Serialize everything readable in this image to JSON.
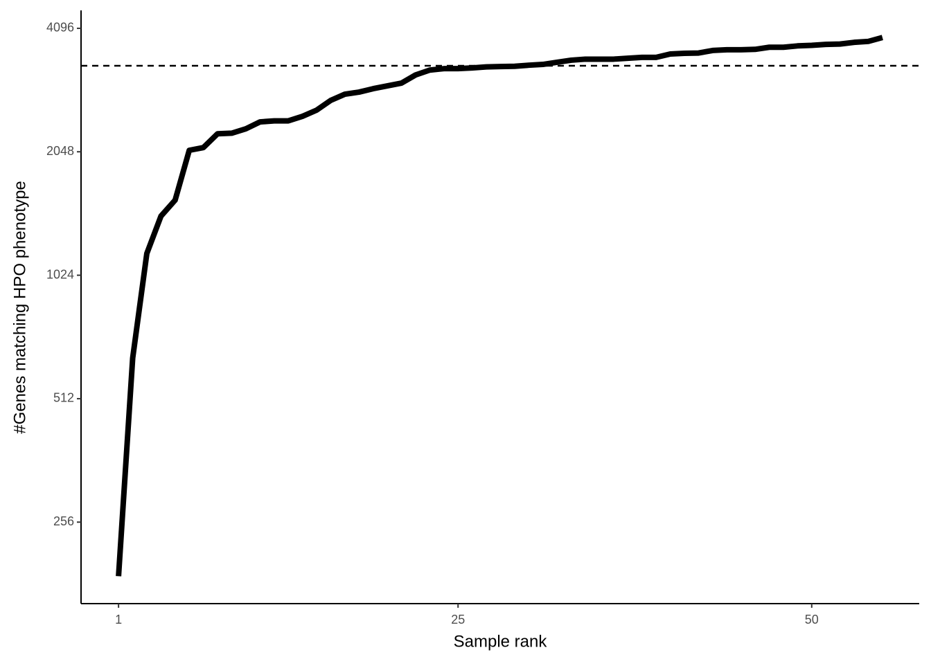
{
  "chart_data": {
    "type": "line",
    "x_label": "Sample rank",
    "y_label": "#Genes matching HPO phenotype",
    "x": [
      1,
      2,
      3,
      4,
      5,
      6,
      7,
      8,
      9,
      10,
      11,
      12,
      13,
      14,
      15,
      16,
      17,
      18,
      19,
      20,
      21,
      22,
      23,
      24,
      25,
      26,
      27,
      28,
      29,
      30,
      31,
      32,
      33,
      34,
      35,
      36,
      37,
      38,
      39,
      40,
      41,
      42,
      43,
      44,
      45,
      46,
      47,
      48,
      49,
      50,
      51,
      52,
      53,
      54,
      55
    ],
    "series": [
      {
        "color": "#000000",
        "values": [
          189,
          643,
          1157,
          1427,
          1561,
          2065,
          2097,
          2266,
          2273,
          2330,
          2422,
          2436,
          2436,
          2499,
          2587,
          2733,
          2830,
          2863,
          2919,
          2965,
          3011,
          3153,
          3240,
          3266,
          3266,
          3280,
          3298,
          3305,
          3310,
          3330,
          3345,
          3385,
          3425,
          3445,
          3445,
          3445,
          3463,
          3480,
          3480,
          3546,
          3560,
          3566,
          3617,
          3632,
          3632,
          3640,
          3683,
          3683,
          3711,
          3722,
          3742,
          3750,
          3786,
          3806,
          3890
        ]
      }
    ],
    "hline": 3320,
    "y_scale": "log2",
    "xlim": [
      -1.65,
      57.6
    ],
    "ylim": [
      162,
      4530
    ],
    "xticks": [
      1,
      25,
      50
    ],
    "yticks": [
      256,
      512,
      1024,
      2048,
      4096
    ],
    "grid": false
  }
}
